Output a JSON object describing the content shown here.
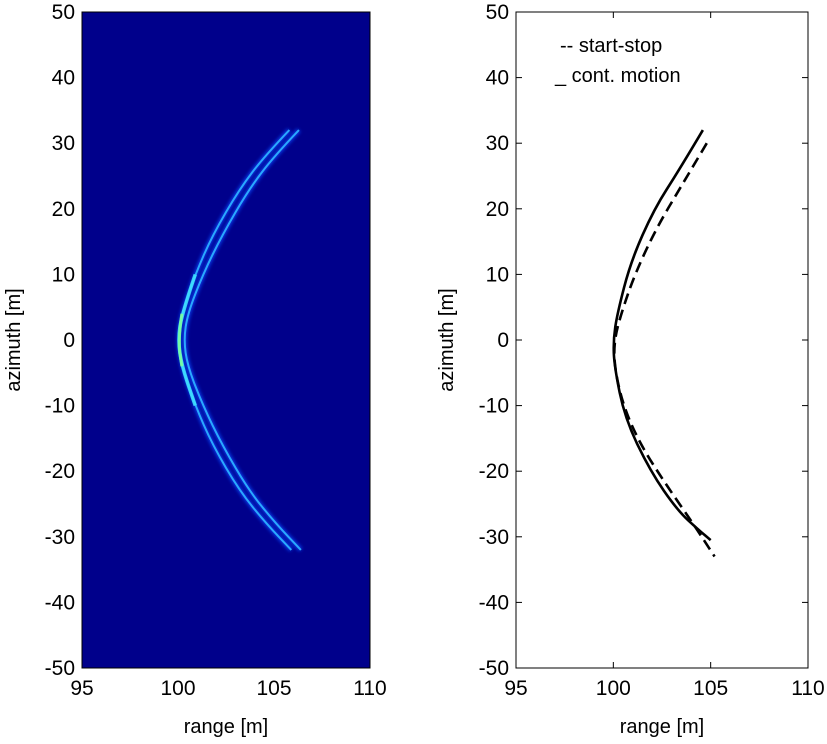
{
  "chart_data": [
    {
      "type": "heatmap",
      "title": "",
      "xlabel": "range [m]",
      "ylabel": "azimuth [m]",
      "xlim": [
        95,
        110
      ],
      "ylim": [
        -50,
        50
      ],
      "xticks": [
        95,
        100,
        105,
        110
      ],
      "yticks": [
        50,
        40,
        30,
        20,
        10,
        0,
        -10,
        -20,
        -30,
        -40,
        -50
      ],
      "colormap": "jet",
      "background_color": "#00008b",
      "signal": {
        "description_values": "two closely spaced hyperbolic range-migration arcs",
        "apex_range": 100,
        "azimuth_span": [
          -32,
          32
        ],
        "arc_1": [
          [
            105.8,
            32
          ],
          [
            104.5,
            28
          ],
          [
            103.2,
            23
          ],
          [
            101.8,
            16
          ],
          [
            100.9,
            10
          ],
          [
            100.2,
            4
          ],
          [
            100.0,
            0
          ],
          [
            100.2,
            -4
          ],
          [
            100.9,
            -10
          ],
          [
            101.8,
            -16
          ],
          [
            103.2,
            -23
          ],
          [
            104.6,
            -28
          ],
          [
            105.9,
            -32
          ]
        ],
        "arc_2": [
          [
            106.3,
            32
          ],
          [
            105.0,
            28
          ],
          [
            103.7,
            23
          ],
          [
            102.3,
            16
          ],
          [
            101.3,
            10
          ],
          [
            100.5,
            4
          ],
          [
            100.3,
            0
          ],
          [
            100.5,
            -4
          ],
          [
            101.3,
            -10
          ],
          [
            102.3,
            -16
          ],
          [
            103.7,
            -23
          ],
          [
            105.1,
            -28
          ],
          [
            106.4,
            -32
          ]
        ]
      }
    },
    {
      "type": "line",
      "title": "",
      "xlabel": "range [m]",
      "ylabel": "azimuth [m]",
      "xlim": [
        95,
        110
      ],
      "ylim": [
        -50,
        50
      ],
      "xticks": [
        95,
        100,
        105,
        110
      ],
      "yticks": [
        50,
        40,
        30,
        20,
        10,
        0,
        -10,
        -20,
        -30,
        -40,
        -50
      ],
      "legend": {
        "placement": "top-left",
        "entries": [
          "-- start-stop",
          "_ cont. motion"
        ]
      },
      "series": [
        {
          "name": "start-stop",
          "style": "dashed",
          "color": "#000000",
          "points": [
            [
              104.8,
              30
            ],
            [
              103.6,
              24
            ],
            [
              102.2,
              17
            ],
            [
              101.1,
              10
            ],
            [
              100.4,
              4
            ],
            [
              100.05,
              0
            ],
            [
              100.05,
              -4
            ],
            [
              100.5,
              -10
            ],
            [
              101.4,
              -16
            ],
            [
              102.7,
              -22
            ],
            [
              104.1,
              -28
            ],
            [
              105.2,
              -33
            ]
          ]
        },
        {
          "name": "cont. motion",
          "style": "solid",
          "color": "#000000",
          "points": [
            [
              104.6,
              32
            ],
            [
              103.4,
              26
            ],
            [
              102.1,
              20
            ],
            [
              100.9,
              12
            ],
            [
              100.2,
              4
            ],
            [
              100.0,
              0
            ],
            [
              100.05,
              -4
            ],
            [
              100.6,
              -12
            ],
            [
              101.9,
              -20
            ],
            [
              103.3,
              -26
            ],
            [
              104.4,
              -29
            ],
            [
              105.0,
              -30.5
            ]
          ]
        }
      ]
    }
  ]
}
